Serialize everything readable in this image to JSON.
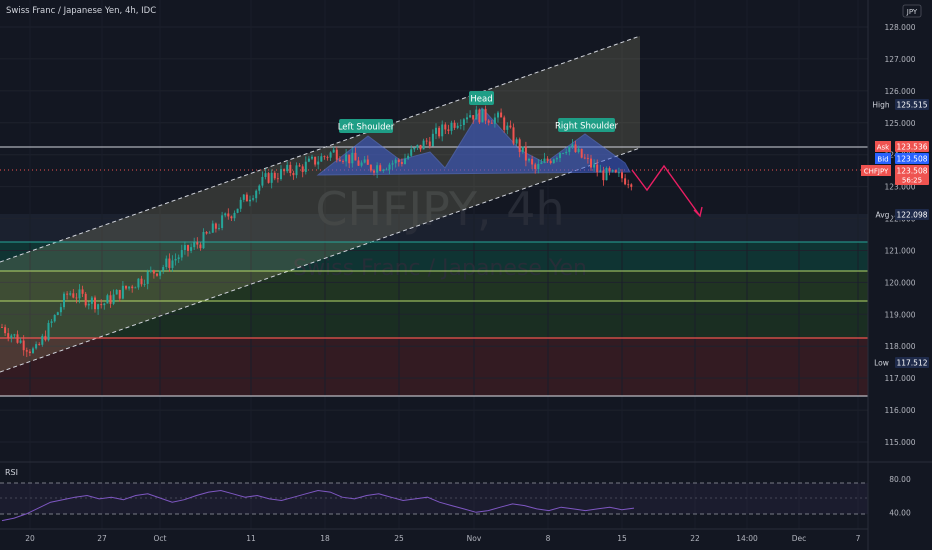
{
  "header": {
    "title": "Swiss Franc / Japanese Yen, 4h, IDC",
    "currency_button": "JPY"
  },
  "watermark": {
    "symbol": "CHFJPY, 4h",
    "name": "Swiss Franc / Japanese Yen"
  },
  "price_axis": {
    "ticks": [
      "128.000",
      "127.000",
      "126.000",
      "125.000",
      "124.000",
      "123.000",
      "122.000",
      "121.000",
      "120.000",
      "119.000",
      "118.000",
      "117.000",
      "116.000",
      "115.000"
    ],
    "badges": {
      "high": {
        "label": "High",
        "value": "125.515"
      },
      "ask": {
        "label": "Ask",
        "value": "123.536"
      },
      "bid": {
        "label": "Bid",
        "value": "123.508"
      },
      "symbol": {
        "label": "CHFJPY",
        "value": "123.508",
        "countdown": "56:25"
      },
      "avg": {
        "label": "Avg",
        "value": "122.098"
      },
      "low": {
        "label": "Low",
        "value": "117.512"
      }
    }
  },
  "time_axis": {
    "ticks": [
      "20",
      "27",
      "Oct",
      "11",
      "18",
      "25",
      "Nov",
      "8",
      "15",
      "22",
      "14:00",
      "Dec",
      "7"
    ]
  },
  "annotations": {
    "left_shoulder": "Left Shoulder",
    "head": "Head",
    "right_shoulder": "Right Shoulder"
  },
  "rsi": {
    "label": "RSI",
    "ticks": [
      "80.00",
      "40.00"
    ]
  },
  "colors": {
    "background": "#131722",
    "up": "#26a69a",
    "down": "#ef5350",
    "channel_fill": "#c9c38a",
    "pattern_fill": "#3f5fd6",
    "label_fill": "#1f9e86",
    "arrow": "#e91e63",
    "rsi_line": "#7e57c2"
  },
  "chart_data": {
    "type": "candlestick",
    "title": "Swiss Franc / Japanese Yen, 4h, IDC",
    "symbol": "CHFJPY",
    "timeframe": "4h",
    "ylim": [
      114.6,
      128.7
    ],
    "x": [
      "20",
      "27",
      "Oct",
      "11",
      "18",
      "25",
      "Nov",
      "8",
      "15",
      "22",
      "14:00",
      "Dec",
      "7"
    ],
    "price_path": [
      {
        "t": "Sep 17",
        "price": 118.6
      },
      {
        "t": "20",
        "price": 117.8
      },
      {
        "t": "27",
        "price": 119.7
      },
      {
        "t": "Oct 1",
        "price": 119.3
      },
      {
        "t": "Oct 4",
        "price": 120.0
      },
      {
        "t": "Oct 8",
        "price": 120.6
      },
      {
        "t": "11",
        "price": 121.3
      },
      {
        "t": "Oct 13",
        "price": 122.3
      },
      {
        "t": "Oct 16",
        "price": 123.3
      },
      {
        "t": "18",
        "price": 123.6
      },
      {
        "t": "Oct 21",
        "price": 124.1
      },
      {
        "t": "25",
        "price": 123.6
      },
      {
        "t": "Oct 28",
        "price": 123.8
      },
      {
        "t": "Nov 1",
        "price": 124.6
      },
      {
        "t": "Nov 3",
        "price": 125.3
      },
      {
        "t": "Nov 5",
        "price": 125.1
      },
      {
        "t": "8",
        "price": 123.5
      },
      {
        "t": "Nov 10",
        "price": 124.3
      },
      {
        "t": "15",
        "price": 123.4
      },
      {
        "t": "Nov 16",
        "price": 123.2
      }
    ],
    "high": 125.515,
    "low": 117.512,
    "average": 122.098,
    "ask": 123.536,
    "bid": 123.508,
    "last": 123.508,
    "horizontal_levels": [
      {
        "price": 123.5,
        "color": "#d1d4dc"
      },
      {
        "price": 121.2,
        "color": "#26a69a"
      },
      {
        "price": 120.3,
        "color": "#b5d96a"
      },
      {
        "price": 119.4,
        "color": "#b5d96a"
      },
      {
        "price": 118.3,
        "color": "#ef5350"
      },
      {
        "price": 116.5,
        "color": "#e0e3eb"
      }
    ],
    "channel": {
      "upper": [
        {
          "t": "Sep 17",
          "price": 120.7
        },
        {
          "t": "Nov 22",
          "price": 127.7
        }
      ],
      "lower": [
        {
          "t": "Sep 17",
          "price": 117.4
        },
        {
          "t": "Nov 22",
          "price": 123.5
        }
      ]
    },
    "head_and_shoulders": {
      "neckline": 123.3,
      "left_shoulder": 124.1,
      "head": 125.5,
      "right_shoulder": 124.1
    },
    "projection": [
      123.2,
      122.8,
      123.5,
      121.9
    ],
    "rsi": {
      "ylim": [
        20,
        100
      ],
      "levels": [
        70,
        30
      ],
      "values": [
        30,
        33,
        38,
        45,
        52,
        55,
        58,
        60,
        56,
        58,
        55,
        60,
        62,
        57,
        52,
        55,
        60,
        64,
        66,
        62,
        58,
        60,
        56,
        54,
        58,
        62,
        66,
        64,
        58,
        56,
        60,
        62,
        58,
        54,
        56,
        58,
        52,
        48,
        44,
        40,
        42,
        46,
        50,
        48,
        44,
        42,
        46,
        44,
        42,
        44,
        46,
        43,
        45
      ]
    }
  }
}
